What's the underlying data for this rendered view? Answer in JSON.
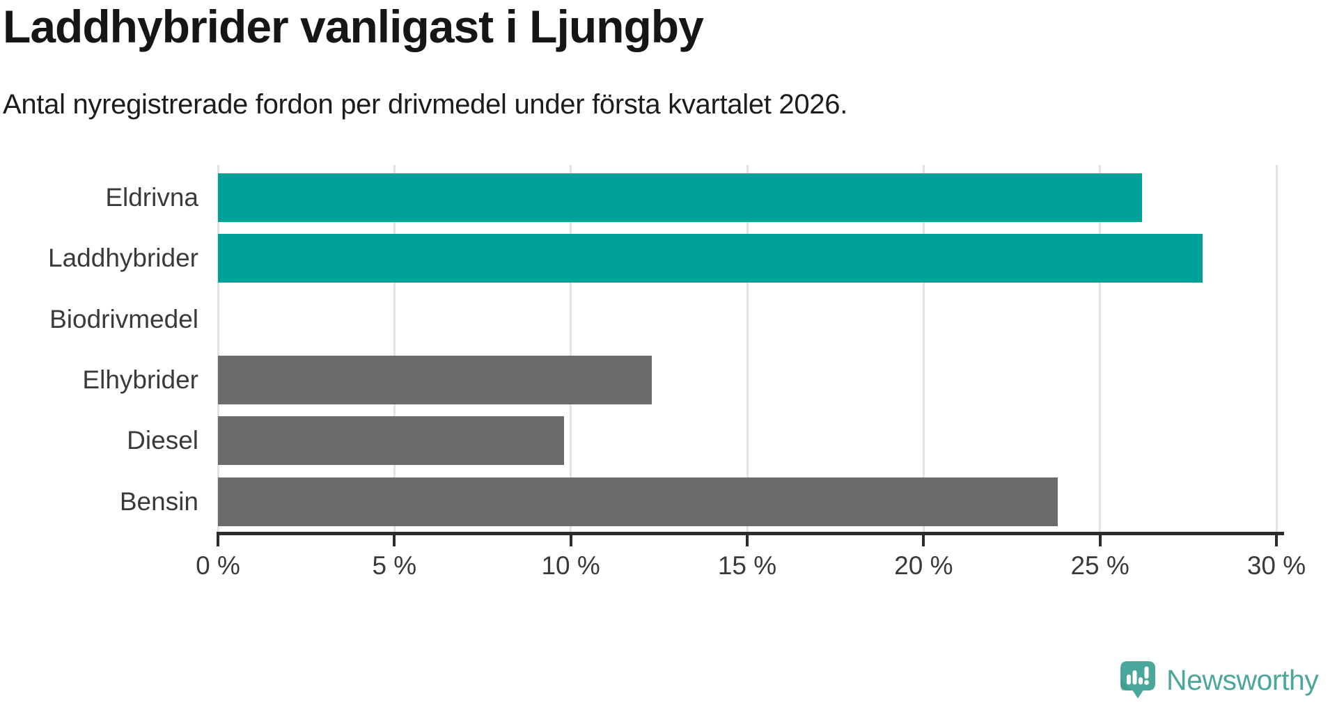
{
  "chart_data": {
    "type": "bar",
    "orientation": "horizontal",
    "title": "Laddhybrider vanligast i Ljungby",
    "subtitle": "Antal nyregistrerade fordon per drivmedel under första kvartalet 2026.",
    "categories": [
      "Eldrivna",
      "Laddhybrider",
      "Biodrivmedel",
      "Elhybrider",
      "Diesel",
      "Bensin"
    ],
    "values": [
      26.2,
      27.9,
      0,
      12.3,
      9.8,
      23.8
    ],
    "bar_color_roles": [
      "highlight",
      "highlight",
      "default",
      "default",
      "default",
      "default"
    ],
    "unit": "%",
    "xlim": [
      0,
      30
    ],
    "x_tick_values": [
      0,
      5,
      10,
      15,
      20,
      25,
      30
    ],
    "x_tick_labels": [
      "0 %",
      "5 %",
      "10 %",
      "15 %",
      "20 %",
      "25 %",
      "30 %"
    ],
    "ylabel": "",
    "xlabel": "",
    "grid": true,
    "legend": "none"
  },
  "colors": {
    "highlight": "#01A19A",
    "default": "#6B6B6E",
    "grid": "#E3E3E3",
    "axis": "#2B2B2B",
    "title_text": "#161616",
    "subtitle_text": "#1C1C1C",
    "tick_text": "#3A3A3A",
    "logo": "#4BA69B",
    "logo_fold": "#40938B",
    "background": "#FFFFFF"
  },
  "branding": {
    "wordmark": "Newsworthy"
  }
}
